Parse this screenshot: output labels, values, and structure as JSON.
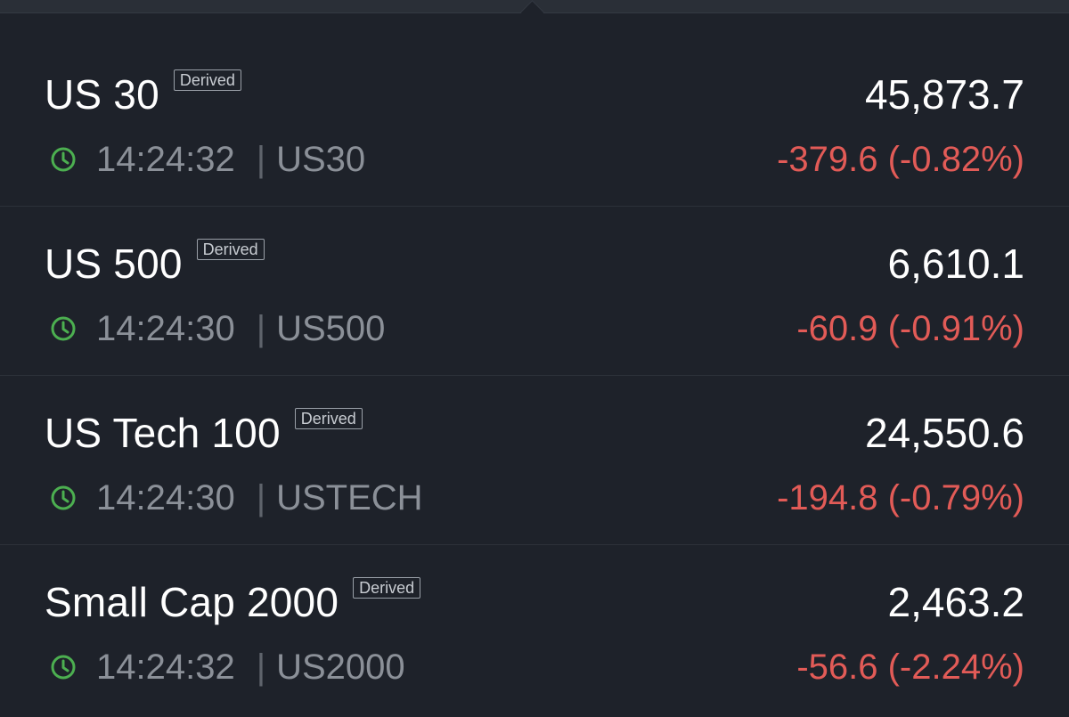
{
  "colors": {
    "background": "#1e222a",
    "negative": "#e25b57",
    "clock": "#4caf50",
    "muted": "#8b9098"
  },
  "icons": {
    "clock": "clock-icon"
  },
  "instruments": [
    {
      "name": "US 30",
      "badge": "Derived",
      "price": "45,873.7",
      "time": "14:24:32",
      "separator": "|",
      "symbol": "US30",
      "change": "-379.6 (-0.82%)"
    },
    {
      "name": "US 500",
      "badge": "Derived",
      "price": "6,610.1",
      "time": "14:24:30",
      "separator": "|",
      "symbol": "US500",
      "change": "-60.9 (-0.91%)"
    },
    {
      "name": "US Tech 100",
      "badge": "Derived",
      "price": "24,550.6",
      "time": "14:24:30",
      "separator": "|",
      "symbol": "USTECH",
      "change": "-194.8 (-0.79%)"
    },
    {
      "name": "Small Cap 2000",
      "badge": "Derived",
      "price": "2,463.2",
      "time": "14:24:32",
      "separator": "|",
      "symbol": "US2000",
      "change": "-56.6 (-2.24%)"
    }
  ]
}
